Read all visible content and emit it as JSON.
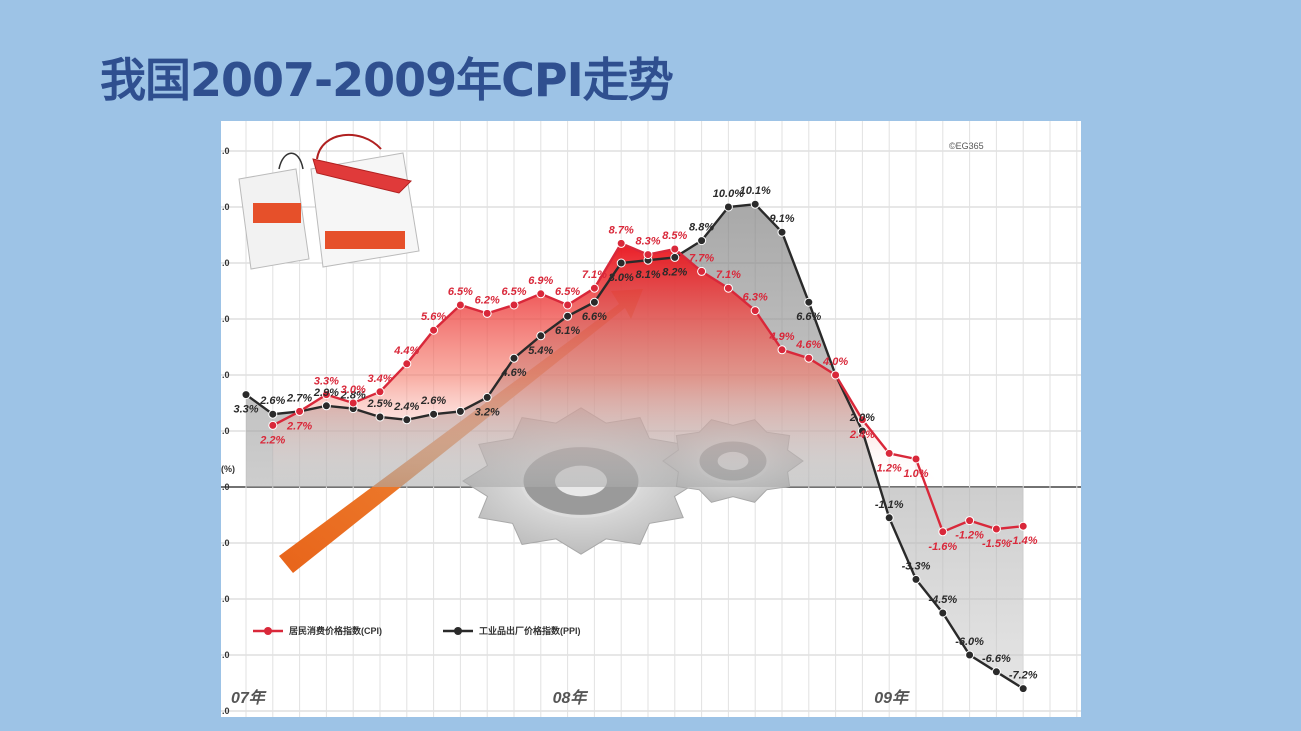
{
  "slide": {
    "title": "我国2007-2009年CPI走势"
  },
  "chart_data": {
    "type": "line",
    "credit": "©EG365",
    "y_unit": "(%)",
    "ylim": [
      -8,
      12
    ],
    "x_period_labels": [
      {
        "text": "07年",
        "index": 0
      },
      {
        "text": "08年",
        "index": 12
      },
      {
        "text": "09年",
        "index": 24
      }
    ],
    "legend": {
      "cpi": "居民消费价格指数(CPI)",
      "ppi": "工业品出厂价格指数(PPI)"
    },
    "colors": {
      "cpi": "#d9283a",
      "ppi": "#2a2a2a"
    },
    "series": [
      {
        "name": "居民消费价格指数(CPI)",
        "key": "cpi",
        "values": [
          2.2,
          2.7,
          3.3,
          3.0,
          3.4,
          4.4,
          5.6,
          6.5,
          6.2,
          6.5,
          6.9,
          6.5,
          7.1,
          8.7,
          8.3,
          8.5,
          7.7,
          7.1,
          6.3,
          4.9,
          4.6,
          4.0,
          2.4,
          1.2,
          1.0,
          -1.6,
          -1.2,
          -1.5,
          -1.4
        ],
        "labels": [
          "2.2%",
          "2.7%",
          "3.3%",
          "3.0%",
          "3.4%",
          "4.4%",
          "5.6%",
          "6.5%",
          "6.2%",
          "6.5%",
          "6.9%",
          "6.5%",
          "7.1%",
          "8.7%",
          "8.3%",
          "8.5%",
          "7.7%",
          "7.1%",
          "6.3%",
          "4.9%",
          "4.6%",
          "4.0%",
          "2.4%",
          "1.2%",
          "1.0%",
          "-1.6%",
          "-1.2%",
          "-1.5%",
          "-1.4%"
        ]
      },
      {
        "name": "工业品出厂价格指数(PPI)",
        "key": "ppi",
        "values": [
          3.3,
          2.6,
          2.7,
          2.9,
          2.8,
          2.5,
          2.4,
          2.6,
          2.7,
          3.2,
          4.6,
          5.4,
          6.1,
          6.6,
          8.0,
          8.1,
          8.2,
          8.8,
          10.0,
          10.1,
          9.1,
          6.6,
          4.0,
          2.0,
          -1.1,
          -3.3,
          -4.5,
          -6.0,
          -6.6,
          -7.2
        ],
        "labels": [
          "3.3%",
          "2.6%",
          "2.7%",
          "2.9%",
          "2.8%",
          "2.5%",
          "2.4%",
          "2.6%",
          "",
          "3.2%",
          "4.6%",
          "5.4%",
          "6.1%",
          "6.6%",
          "8.0%",
          "8.1%",
          "8.2%",
          "8.8%",
          "10.0%",
          "10.1%",
          "9.1%",
          "6.6%",
          "",
          "2.0%",
          "-1.1%",
          "-3.3%",
          "-4.5%",
          "-6.0%",
          "-6.6%",
          "-7.2%"
        ]
      }
    ]
  }
}
